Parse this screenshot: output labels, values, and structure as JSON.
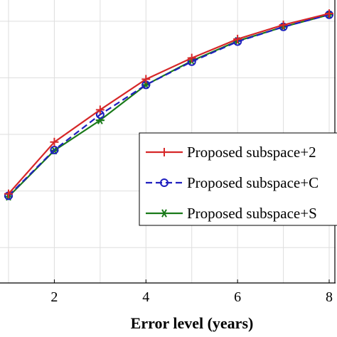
{
  "chart_data": {
    "type": "line",
    "xlabel": "Error level (years)",
    "ylabel": "",
    "title": "",
    "xlim": [
      0.9,
      8.2
    ],
    "ylim": [
      0.0,
      1.0
    ],
    "x_ticks": [
      2,
      4,
      6,
      8
    ],
    "grid": true,
    "legend_position": "right",
    "series": [
      {
        "name": "Proposed subspace+2",
        "color": "#d62728",
        "linestyle": "solid",
        "marker": "plus",
        "x": [
          1,
          2,
          3,
          4,
          5,
          6,
          7,
          8
        ],
        "y": [
          0.315,
          0.498,
          0.612,
          0.72,
          0.795,
          0.862,
          0.912,
          0.952
        ]
      },
      {
        "name": "Proposed subspace+C",
        "color": "#1f1fbf",
        "linestyle": "dashed",
        "marker": "circle",
        "x": [
          1,
          2,
          3,
          4,
          5,
          6,
          7,
          8
        ],
        "y": [
          0.308,
          0.47,
          0.595,
          0.7,
          0.782,
          0.853,
          0.905,
          0.948
        ]
      },
      {
        "name": "Proposed subspace+S",
        "color": "#1a7a1a",
        "linestyle": "solid",
        "marker": "star",
        "x": [
          1,
          2,
          3,
          4,
          5,
          6,
          7,
          8
        ],
        "y": [
          0.305,
          0.468,
          0.575,
          0.7,
          0.785,
          0.855,
          0.905,
          0.948
        ]
      }
    ]
  },
  "axes": {
    "x_tick_labels": [
      "2",
      "4",
      "6",
      "8"
    ],
    "xlabel": "Error level (years)"
  },
  "legend": {
    "items": [
      {
        "label": "Proposed subspace+2"
      },
      {
        "label": "Proposed subspace+C"
      },
      {
        "label": "Proposed subspace+S"
      }
    ]
  }
}
